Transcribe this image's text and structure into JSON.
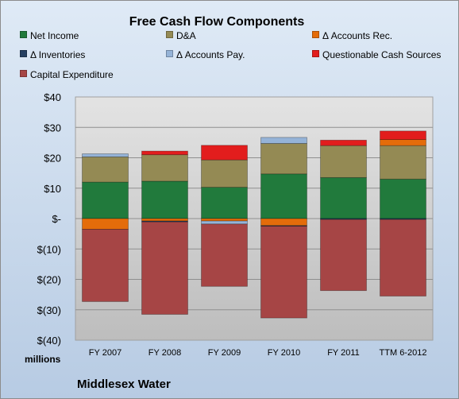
{
  "chart_data": {
    "type": "bar",
    "stacked": true,
    "title": "Free Cash Flow Components",
    "ylabel": "",
    "unit_label": "millions",
    "company": "Middlesex Water",
    "categories": [
      "FY 2007",
      "FY 2008",
      "FY 2009",
      "FY 2010",
      "FY 2011",
      "TTM 6-2012"
    ],
    "yticks": [
      "$40",
      "$30",
      "$20",
      "$10",
      "$-",
      "$(10)",
      "$(20)",
      "$(30)",
      "$(40)"
    ],
    "ylim": [
      -40,
      40
    ],
    "grid": true,
    "legend_position": "top",
    "series": [
      {
        "name": "Net Income",
        "color": "#217a3c",
        "values": [
          12.0,
          12.3,
          10.3,
          14.7,
          13.5,
          13.0
        ]
      },
      {
        "name": "D&A",
        "color": "#948a54",
        "values": [
          8.3,
          8.7,
          9.0,
          10.0,
          10.5,
          11.0
        ]
      },
      {
        "name": "Δ Accounts Rec.",
        "color": "#e46c0a",
        "values": [
          -3.5,
          -0.8,
          -0.8,
          -2.3,
          0.0,
          2.0
        ]
      },
      {
        "name": "Δ Inventories",
        "color": "#254061",
        "values": [
          0.0,
          -0.3,
          0.0,
          -0.2,
          -0.3,
          -0.3
        ]
      },
      {
        "name": "Δ Accounts Pay.",
        "color": "#95b3d7",
        "values": [
          1.0,
          0.0,
          -1.0,
          2.0,
          0.0,
          0.0
        ]
      },
      {
        "name": "Questionable Cash Sources",
        "color": "#e21d1d",
        "values": [
          0.0,
          1.2,
          4.8,
          0.0,
          1.8,
          2.8
        ]
      },
      {
        "name": "Capital Expenditure",
        "color": "#a64545",
        "values": [
          -23.8,
          -30.4,
          -20.5,
          -30.2,
          -23.4,
          -25.2
        ]
      }
    ]
  }
}
